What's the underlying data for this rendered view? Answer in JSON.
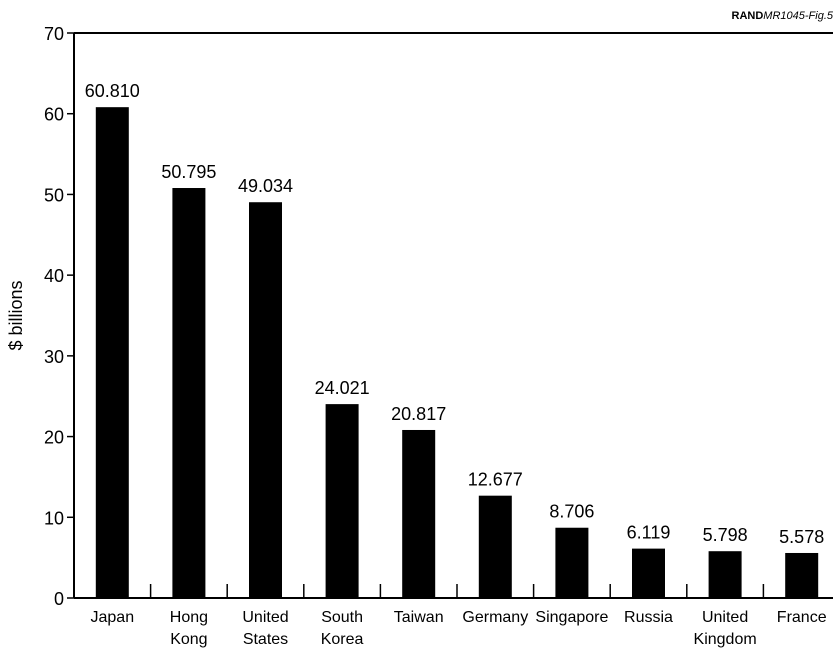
{
  "figure_tag": {
    "org": "RAND",
    "id": "MR1045-Fig.5"
  },
  "chart_data": {
    "type": "bar",
    "title": "",
    "xlabel": "",
    "ylabel": "$ billions",
    "ylim": [
      0,
      70
    ],
    "yticks": [
      0,
      10,
      20,
      30,
      40,
      50,
      60,
      70
    ],
    "grid": false,
    "categories": [
      [
        "Japan"
      ],
      [
        "Hong",
        "Kong"
      ],
      [
        "United",
        "States"
      ],
      [
        "South",
        "Korea"
      ],
      [
        "Taiwan"
      ],
      [
        "Germany"
      ],
      [
        "Singapore"
      ],
      [
        "Russia"
      ],
      [
        "United",
        "Kingdom"
      ],
      [
        "France"
      ]
    ],
    "values": [
      60.81,
      50.795,
      49.034,
      24.021,
      20.817,
      12.677,
      8.706,
      6.119,
      5.798,
      5.578
    ],
    "value_labels": [
      "60.810",
      "50.795",
      "49.034",
      "24.021",
      "20.817",
      "12.677",
      "8.706",
      "6.119",
      "5.798",
      "5.578"
    ],
    "bar_color": "#000000"
  }
}
